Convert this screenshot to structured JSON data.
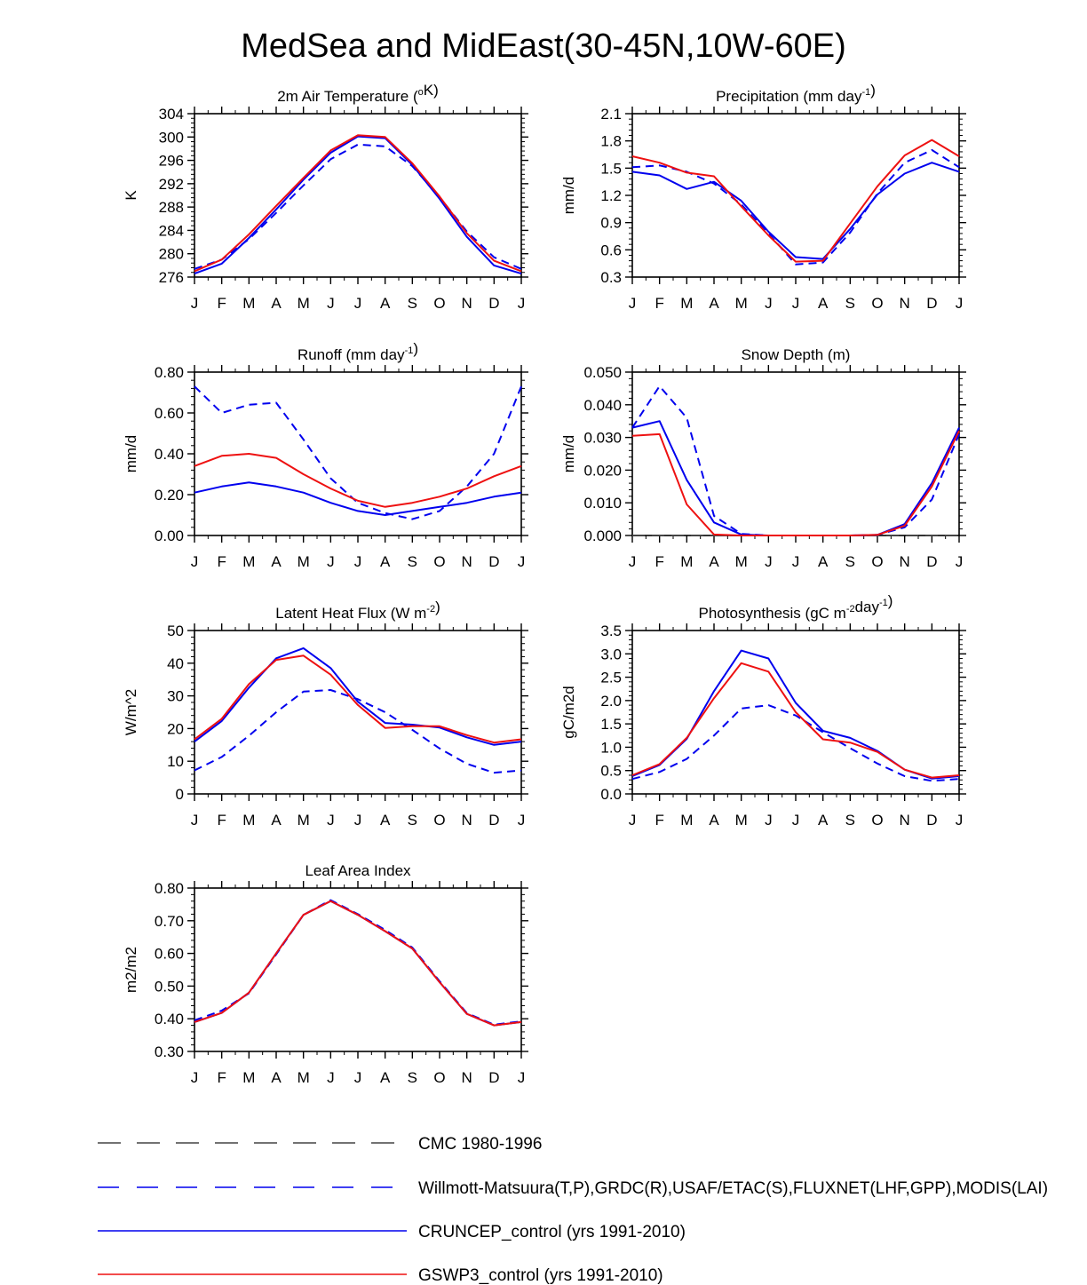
{
  "figure_title": "MedSea and MidEast(30-45N,10W-60E)",
  "months": [
    "J",
    "F",
    "M",
    "A",
    "M",
    "J",
    "J",
    "A",
    "S",
    "O",
    "N",
    "D",
    "J"
  ],
  "colors": {
    "red": "#ee1111",
    "blue": "#0000ee",
    "gray": "#444444",
    "axis": "#000000"
  },
  "legend": [
    {
      "label": "CMC 1980-1996",
      "color": "#444444",
      "style": "dash-long"
    },
    {
      "label": "Willmott-Matsuura(T,P),GRDC(R),USAF/ETAC(S),FLUXNET(LHF,GPP),MODIS(LAI)",
      "color": "#0000ee",
      "style": "dash"
    },
    {
      "label": "CRUNCEP_control (yrs 1991-2010)",
      "color": "#0000ee",
      "style": "solid"
    },
    {
      "label": "GSWP3_control (yrs 1991-2010)",
      "color": "#ee1111",
      "style": "solid"
    }
  ],
  "chart_data": [
    {
      "type": "line",
      "title": "2m Air Temperature (",
      "title_sup": "o",
      "title_tail": "K)",
      "ylabel": "K",
      "ylim": [
        276,
        304
      ],
      "yticks": [
        "276",
        "280",
        "284",
        "288",
        "292",
        "296",
        "300",
        "304"
      ],
      "series": [
        {
          "name": "Willmott-Matsuura",
          "color": "blue",
          "dash": true,
          "values": [
            277.4,
            279.0,
            282.5,
            287.0,
            291.7,
            296.2,
            298.7,
            298.4,
            295.0,
            289.7,
            283.8,
            279.4,
            277.4
          ]
        },
        {
          "name": "CRUNCEP_control",
          "color": "blue",
          "dash": false,
          "values": [
            276.6,
            278.3,
            282.7,
            287.6,
            292.7,
            297.3,
            300.1,
            299.8,
            295.2,
            289.4,
            282.9,
            278.0,
            276.6
          ]
        },
        {
          "name": "GSWP3_control",
          "color": "red",
          "dash": false,
          "values": [
            277.0,
            279.0,
            283.3,
            288.2,
            293.0,
            297.7,
            300.3,
            300.0,
            295.5,
            289.8,
            283.5,
            278.8,
            277.0
          ]
        }
      ]
    },
    {
      "type": "line",
      "title": "Precipitation (mm day",
      "title_sup": "-1",
      "title_tail": ")",
      "ylabel": "mm/d",
      "ylim": [
        0.3,
        2.1
      ],
      "yticks": [
        "0.3",
        "0.6",
        "0.9",
        "1.2",
        "1.5",
        "1.8",
        "2.1"
      ],
      "series": [
        {
          "name": "Willmott-Matsuura",
          "color": "blue",
          "dash": true,
          "values": [
            1.51,
            1.53,
            1.46,
            1.33,
            1.1,
            0.78,
            0.44,
            0.46,
            0.79,
            1.22,
            1.56,
            1.7,
            1.51
          ]
        },
        {
          "name": "CRUNCEP_control",
          "color": "blue",
          "dash": false,
          "values": [
            1.46,
            1.42,
            1.27,
            1.35,
            1.14,
            0.8,
            0.52,
            0.5,
            0.83,
            1.21,
            1.44,
            1.56,
            1.46
          ]
        },
        {
          "name": "GSWP3_control",
          "color": "red",
          "dash": false,
          "values": [
            1.63,
            1.56,
            1.45,
            1.41,
            1.08,
            0.76,
            0.47,
            0.48,
            0.89,
            1.3,
            1.64,
            1.81,
            1.63
          ]
        }
      ]
    },
    {
      "type": "line",
      "title": "Runoff (mm day",
      "title_sup": "-1",
      "title_tail": ")",
      "ylabel": "mm/d",
      "ylim": [
        0.0,
        0.8
      ],
      "yticks": [
        "0.00",
        "0.20",
        "0.40",
        "0.60",
        "0.80"
      ],
      "series": [
        {
          "name": "Willmott-Matsuura",
          "color": "blue",
          "dash": true,
          "values": [
            0.73,
            0.6,
            0.64,
            0.65,
            0.47,
            0.28,
            0.16,
            0.11,
            0.08,
            0.12,
            0.24,
            0.4,
            0.73
          ]
        },
        {
          "name": "CRUNCEP_control",
          "color": "blue",
          "dash": false,
          "values": [
            0.21,
            0.24,
            0.26,
            0.24,
            0.21,
            0.16,
            0.12,
            0.1,
            0.12,
            0.14,
            0.16,
            0.19,
            0.21
          ]
        },
        {
          "name": "GSWP3_control",
          "color": "red",
          "dash": false,
          "values": [
            0.34,
            0.39,
            0.4,
            0.38,
            0.3,
            0.23,
            0.17,
            0.14,
            0.16,
            0.19,
            0.23,
            0.29,
            0.34
          ]
        }
      ]
    },
    {
      "type": "line",
      "title": "Snow Depth (m)",
      "title_sup": "",
      "title_tail": "",
      "ylabel": "mm/d",
      "ylim": [
        0.0,
        0.05
      ],
      "yticks": [
        "0.000",
        "0.010",
        "0.020",
        "0.030",
        "0.040",
        "0.050"
      ],
      "series": [
        {
          "name": "CMC 1980-1996",
          "color": "gray",
          "dash": true,
          "values": [
            0,
            0,
            0,
            0,
            0,
            0,
            0,
            0,
            0,
            0,
            0,
            0,
            0
          ]
        },
        {
          "name": "Willmott-Matsuura",
          "color": "blue",
          "dash": true,
          "values": [
            0.033,
            0.0457,
            0.036,
            0.006,
            0.0005,
            0,
            0,
            0,
            0,
            0.0002,
            0.0025,
            0.011,
            0.031
          ]
        },
        {
          "name": "CRUNCEP_control",
          "color": "blue",
          "dash": false,
          "values": [
            0.033,
            0.035,
            0.017,
            0.004,
            0.0003,
            0,
            0,
            0,
            0,
            0.0002,
            0.0035,
            0.016,
            0.033
          ]
        },
        {
          "name": "GSWP3_control",
          "color": "red",
          "dash": false,
          "values": [
            0.0305,
            0.031,
            0.0095,
            0.0003,
            0,
            0,
            0,
            0,
            0,
            0.0002,
            0.003,
            0.015,
            0.032
          ]
        }
      ]
    },
    {
      "type": "line",
      "title": "Latent Heat Flux (W m",
      "title_sup": "-2",
      "title_tail": ")",
      "ylabel": "W/m^2",
      "ylim": [
        0,
        50
      ],
      "yticks": [
        "0",
        "10",
        "20",
        "30",
        "40",
        "50"
      ],
      "series": [
        {
          "name": "FLUXNET",
          "color": "blue",
          "dash": true,
          "values": [
            7.2,
            11.3,
            17.8,
            25.0,
            31.3,
            31.8,
            29.0,
            25.0,
            19.6,
            13.9,
            9.2,
            6.5,
            7.2
          ]
        },
        {
          "name": "CRUNCEP_control",
          "color": "blue",
          "dash": false,
          "values": [
            16.0,
            22.3,
            32.5,
            41.5,
            44.6,
            38.5,
            28.2,
            21.7,
            21.2,
            20.3,
            17.3,
            15.0,
            16.0
          ]
        },
        {
          "name": "GSWP3_control",
          "color": "red",
          "dash": false,
          "values": [
            16.7,
            23.0,
            33.6,
            41.0,
            42.3,
            36.5,
            27.2,
            20.2,
            20.7,
            20.7,
            18.0,
            15.7,
            16.7
          ]
        }
      ]
    },
    {
      "type": "line",
      "title": "Photosynthesis (gC m",
      "title_sup": "-2",
      "title_tail": "day",
      "title_sup2": "-1",
      "title_tail2": ")",
      "ylabel": "gC/m2d",
      "ylim": [
        0.0,
        3.5
      ],
      "yticks": [
        "0.0",
        "0.5",
        "1.0",
        "1.5",
        "2.0",
        "2.5",
        "3.0",
        "3.5"
      ],
      "series": [
        {
          "name": "FLUXNET",
          "color": "blue",
          "dash": true,
          "values": [
            0.32,
            0.47,
            0.75,
            1.25,
            1.83,
            1.9,
            1.68,
            1.32,
            0.98,
            0.65,
            0.38,
            0.28,
            0.32
          ]
        },
        {
          "name": "CRUNCEP_control",
          "color": "blue",
          "dash": false,
          "values": [
            0.38,
            0.62,
            1.18,
            2.2,
            3.07,
            2.9,
            1.95,
            1.35,
            1.2,
            0.92,
            0.52,
            0.33,
            0.38
          ]
        },
        {
          "name": "GSWP3_control",
          "color": "red",
          "dash": false,
          "values": [
            0.4,
            0.64,
            1.2,
            2.05,
            2.8,
            2.62,
            1.75,
            1.17,
            1.1,
            0.9,
            0.52,
            0.35,
            0.4
          ]
        }
      ]
    },
    {
      "type": "line",
      "title": "Leaf Area Index",
      "title_sup": "",
      "title_tail": "",
      "ylabel": "m2/m2",
      "ylim": [
        0.3,
        0.8
      ],
      "yticks": [
        "0.30",
        "0.40",
        "0.50",
        "0.60",
        "0.70",
        "0.80"
      ],
      "series": [
        {
          "name": "MODIS",
          "color": "blue",
          "dash": true,
          "values": [
            0.395,
            0.425,
            0.478,
            0.597,
            0.718,
            0.763,
            0.72,
            0.672,
            0.618,
            0.515,
            0.417,
            0.382,
            0.392
          ]
        },
        {
          "name": "CRUNCEP_control",
          "color": "blue",
          "dash": false,
          "values": [
            0.39,
            0.418,
            0.48,
            0.6,
            0.718,
            0.76,
            0.718,
            0.668,
            0.615,
            0.512,
            0.415,
            0.38,
            0.39
          ]
        },
        {
          "name": "GSWP3_control",
          "color": "red",
          "dash": false,
          "values": [
            0.39,
            0.418,
            0.48,
            0.6,
            0.718,
            0.76,
            0.718,
            0.668,
            0.615,
            0.512,
            0.415,
            0.38,
            0.39
          ]
        }
      ]
    }
  ]
}
